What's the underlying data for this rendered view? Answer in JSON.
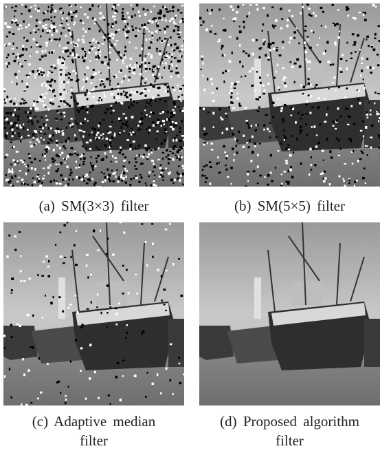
{
  "figures": [
    {
      "caption": "(a) SM(3×3) filter"
    },
    {
      "caption": "(b) SM(5×5) filter"
    },
    {
      "caption": "(c) Adaptive median filter"
    },
    {
      "caption": "(d) Proposed algorithm filter"
    }
  ]
}
